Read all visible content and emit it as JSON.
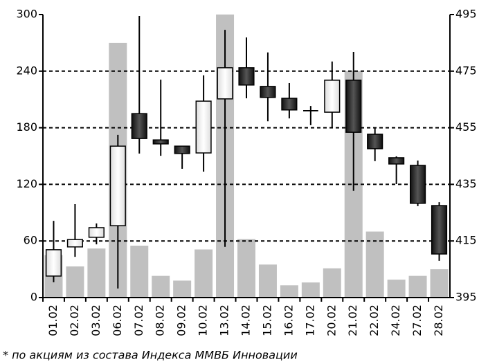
{
  "chart_data": {
    "type": "candlestick",
    "categories": [
      "01.02",
      "02.02",
      "03.02",
      "06.02",
      "07.02",
      "08.02",
      "09.02",
      "10.02",
      "13.02",
      "14.02",
      "15.02",
      "16.02",
      "17.02",
      "20.02",
      "21.02",
      "22.02",
      "24.02",
      "27.02",
      "28.02"
    ],
    "volume": {
      "color": "#c0c0c0",
      "values": [
        45,
        33,
        52,
        270,
        55,
        23,
        18,
        51,
        300,
        62,
        35,
        13,
        16,
        31,
        240,
        70,
        19,
        23,
        30
      ]
    },
    "open": [
      402.6,
      412.9,
      416.3,
      420.4,
      460.0,
      450.7,
      448.5,
      446.1,
      465.2,
      476.2,
      469.6,
      465.4,
      461.0,
      460.5,
      471.8,
      452.7,
      444.4,
      441.7,
      427.5
    ],
    "high": [
      422.1,
      428.0,
      421.2,
      452.5,
      494.5,
      472.0,
      448.5,
      473.5,
      489.6,
      486.9,
      481.6,
      470.8,
      462.7,
      478.4,
      481.8,
      455.1,
      444.9,
      443.4,
      428.7
    ],
    "low": [
      400.4,
      409.4,
      413.8,
      398.2,
      445.9,
      445.1,
      440.5,
      439.5,
      412.9,
      465.4,
      457.3,
      458.3,
      455.9,
      455.1,
      432.7,
      443.2,
      435.1,
      427.3,
      408.0
    ],
    "close": [
      411.9,
      415.5,
      419.7,
      448.5,
      451.2,
      449.3,
      445.9,
      464.4,
      476.2,
      470.1,
      465.7,
      461.3,
      461.0,
      471.8,
      453.4,
      447.6,
      442.2,
      428.3,
      410.4
    ],
    "up_color": "#ffffff",
    "down_color": "#333333",
    "ylim": [
      0,
      300
    ],
    "yticks": [
      0,
      60,
      120,
      180,
      240,
      300
    ],
    "y2lim": [
      395,
      495
    ],
    "y2ticks": [
      395,
      415,
      435,
      455,
      475,
      495
    ],
    "grid": true,
    "footnote": "* по акциям из состава Индекса ММВБ Инновации"
  }
}
